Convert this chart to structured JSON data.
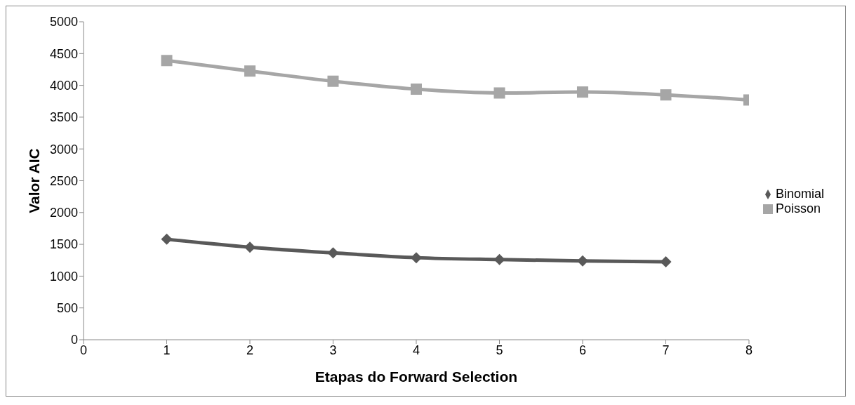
{
  "chart_data": {
    "type": "line",
    "xlabel": "Etapas do Forward Selection",
    "ylabel": "Valor AIC",
    "x": [
      1,
      2,
      3,
      4,
      5,
      6,
      7,
      8
    ],
    "series": [
      {
        "name": "Binomial",
        "color": "#595959",
        "marker": "diamond",
        "values": [
          1580,
          1455,
          1365,
          1290,
          1260,
          1240,
          1225,
          null
        ]
      },
      {
        "name": "Poisson",
        "color": "#a6a6a6",
        "marker": "square",
        "values": [
          4390,
          4225,
          4065,
          3940,
          3880,
          3895,
          3850,
          3770
        ]
      }
    ],
    "xlim": [
      0,
      8
    ],
    "xticks": [
      0,
      1,
      2,
      3,
      4,
      5,
      6,
      7,
      8
    ],
    "ylim": [
      0,
      5000
    ],
    "yticks": [
      0,
      500,
      1000,
      1500,
      2000,
      2500,
      3000,
      3500,
      4000,
      4500,
      5000
    ],
    "grid": false,
    "legend": "right",
    "line_style": "solid"
  }
}
